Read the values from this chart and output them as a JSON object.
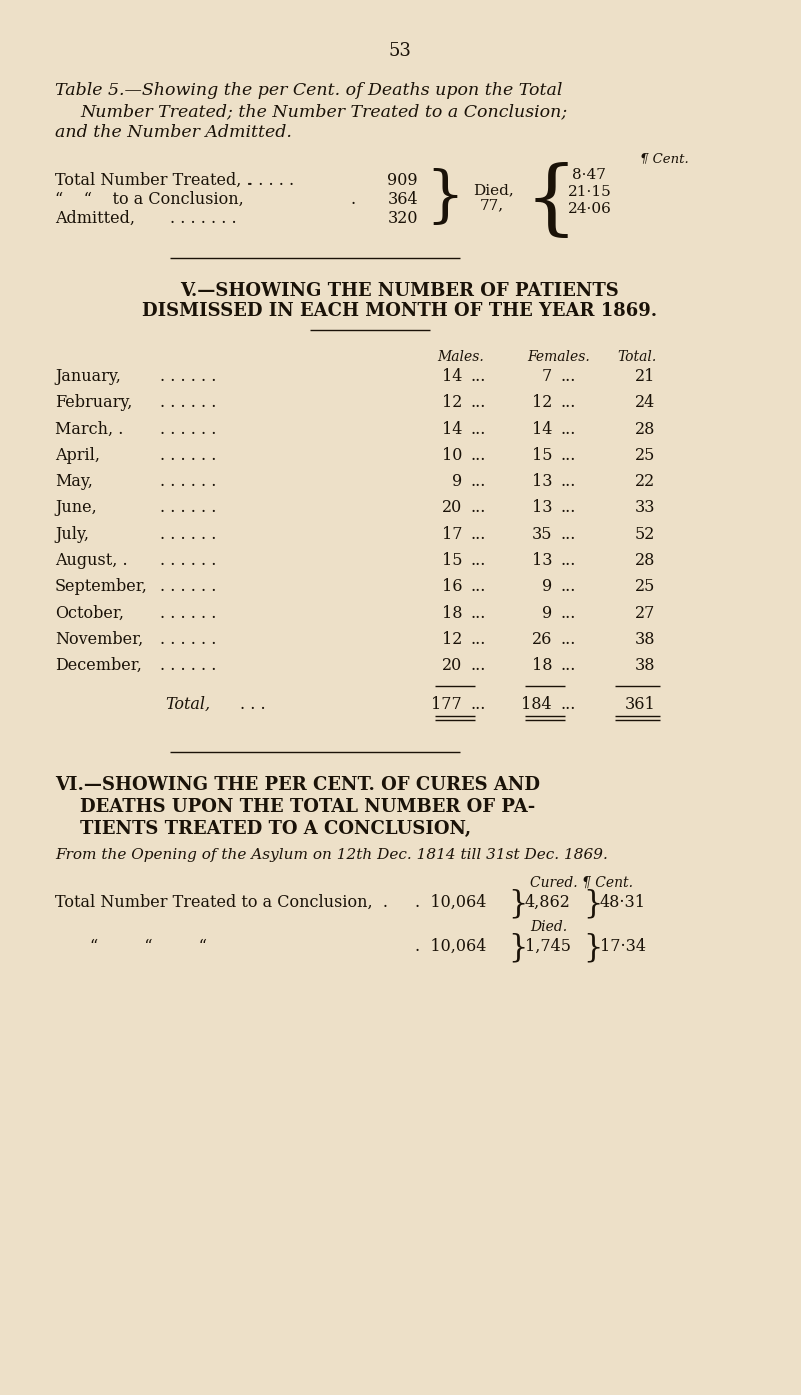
{
  "bg_color": "#ede0c8",
  "text_color": "#1a1208",
  "page_number": "53",
  "table5_title_line1": "Table 5.—Showing the per Cent. of Deaths upon the Total",
  "table5_title_line2": "Number Treated; the Number Treated to a Conclusion;",
  "table5_title_line3": "and the Number Admitted.",
  "months": [
    "January,",
    "February,",
    "March, .",
    "April,",
    "May,",
    "June,",
    "July,",
    "August, .",
    "September,",
    "October,",
    "November,",
    "December,"
  ],
  "males": [
    14,
    12,
    14,
    10,
    9,
    20,
    17,
    15,
    16,
    18,
    12,
    20
  ],
  "females": [
    7,
    12,
    14,
    15,
    13,
    13,
    35,
    13,
    9,
    9,
    26,
    18
  ],
  "totals": [
    21,
    24,
    28,
    25,
    22,
    33,
    52,
    28,
    25,
    27,
    38,
    38
  ],
  "total_males": 177,
  "total_females": 184,
  "total_total": 361,
  "section6_subtitle": "From the Opening of the Asylum on 12th Dec. 1814 till 31st Dec. 1869.",
  "section6_row1_cured": "4,862",
  "section6_row1_pct": "48·31",
  "section6_row2_died": "1,745",
  "section6_row2_pct": "17·34"
}
